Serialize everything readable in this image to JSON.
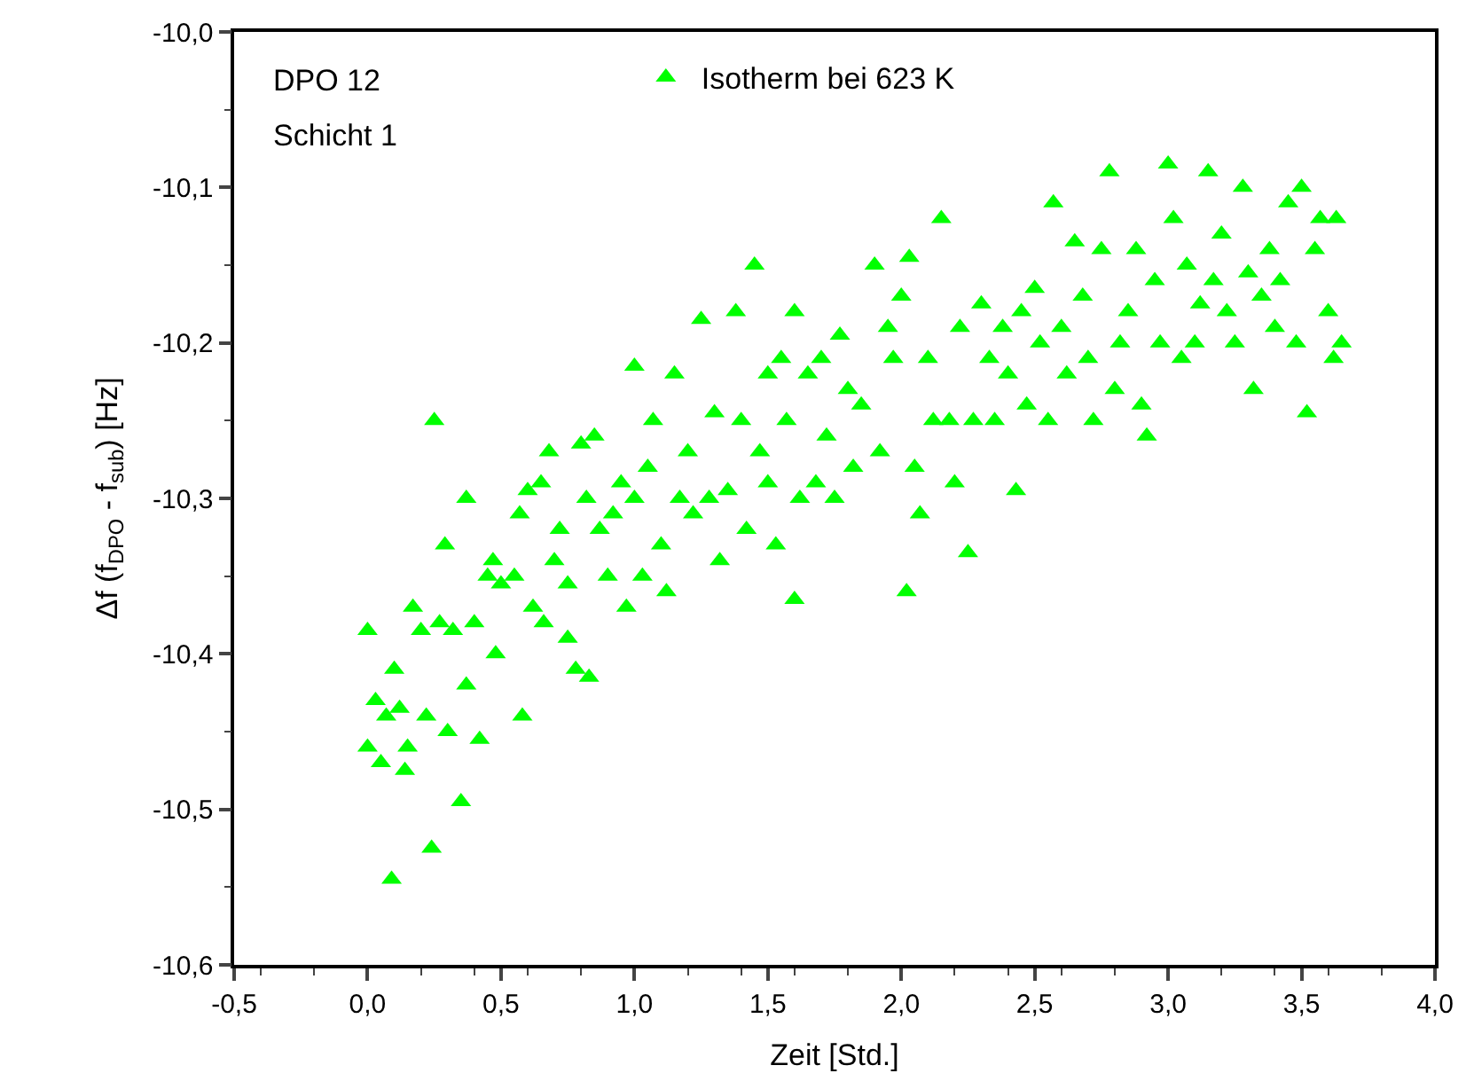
{
  "chart_data": {
    "type": "scatter",
    "xlabel": "Zeit [Std.]",
    "ylabel": "Δf (f$_{DPO}$ - f$_{sub}$) [Hz]",
    "annotations": [
      "DPO 12",
      "Schicht 1"
    ],
    "xlim": [
      -0.5,
      4.0
    ],
    "ylim": [
      -10.6,
      -10.0
    ],
    "xticks": [
      {
        "value": -0.5,
        "label": "-0,5"
      },
      {
        "value": 0,
        "label": "0,0"
      },
      {
        "value": 0.5,
        "label": "0,5"
      },
      {
        "value": 1,
        "label": "1,0"
      },
      {
        "value": 1.5,
        "label": "1,5"
      },
      {
        "value": 2,
        "label": "2,0"
      },
      {
        "value": 2.5,
        "label": "2,5"
      },
      {
        "value": 3,
        "label": "3,0"
      },
      {
        "value": 3.5,
        "label": "3,5"
      },
      {
        "value": 4,
        "label": "4,0"
      }
    ],
    "yticks": [
      {
        "value": -10.6,
        "label": "-10,6"
      },
      {
        "value": -10.5,
        "label": "-10,5"
      },
      {
        "value": -10.4,
        "label": "-10,4"
      },
      {
        "value": -10.3,
        "label": "-10,3"
      },
      {
        "value": -10.2,
        "label": "-10,2"
      },
      {
        "value": -10.1,
        "label": "-10,1"
      },
      {
        "value": -10.0,
        "label": "-10,0"
      }
    ],
    "legend": "top",
    "marker": "triangle",
    "x": [
      0.0,
      0.0,
      0.03,
      0.05,
      0.07,
      0.1,
      0.09,
      0.12,
      0.14,
      0.15,
      0.17,
      0.2,
      0.22,
      0.24,
      0.25,
      0.27,
      0.29,
      0.3,
      0.32,
      0.35,
      0.37,
      0.37,
      0.4,
      0.42,
      0.45,
      0.47,
      0.48,
      0.5,
      0.55,
      0.58,
      0.57,
      0.6,
      0.62,
      0.65,
      0.66,
      0.68,
      0.7,
      0.72,
      0.75,
      0.75,
      0.78,
      0.8,
      0.82,
      0.83,
      0.85,
      0.87,
      0.9,
      0.92,
      0.95,
      0.97,
      1.0,
      1.0,
      1.03,
      1.05,
      1.07,
      1.1,
      1.12,
      1.15,
      1.17,
      1.2,
      1.22,
      1.25,
      1.28,
      1.3,
      1.32,
      1.35,
      1.38,
      1.4,
      1.42,
      1.45,
      1.47,
      1.5,
      1.5,
      1.53,
      1.55,
      1.57,
      1.6,
      1.6,
      1.62,
      1.65,
      1.68,
      1.7,
      1.72,
      1.75,
      1.77,
      1.8,
      1.82,
      1.85,
      1.9,
      1.92,
      1.95,
      1.97,
      2.0,
      2.02,
      2.03,
      2.05,
      2.07,
      2.1,
      2.12,
      2.15,
      2.18,
      2.2,
      2.22,
      2.25,
      2.27,
      2.3,
      2.33,
      2.35,
      2.38,
      2.4,
      2.43,
      2.45,
      2.47,
      2.5,
      2.52,
      2.55,
      2.57,
      2.6,
      2.62,
      2.65,
      2.68,
      2.7,
      2.72,
      2.75,
      2.78,
      2.8,
      2.82,
      2.85,
      2.88,
      2.9,
      2.92,
      2.95,
      2.97,
      3.0,
      3.02,
      3.05,
      3.07,
      3.1,
      3.12,
      3.15,
      3.17,
      3.2,
      3.22,
      3.25,
      3.28,
      3.3,
      3.32,
      3.35,
      3.38,
      3.4,
      3.42,
      3.45,
      3.48,
      3.5,
      3.52,
      3.55,
      3.57,
      3.6,
      3.63,
      3.65,
      3.62
    ],
    "series": [
      {
        "name": "Isotherm bei 623 K",
        "color": "#00ff00",
        "values": [
          -10.385,
          -10.46,
          -10.43,
          -10.47,
          -10.44,
          -10.41,
          -10.545,
          -10.435,
          -10.475,
          -10.46,
          -10.37,
          -10.385,
          -10.44,
          -10.525,
          -10.25,
          -10.38,
          -10.33,
          -10.45,
          -10.385,
          -10.495,
          -10.3,
          -10.42,
          -10.38,
          -10.455,
          -10.35,
          -10.34,
          -10.4,
          -10.355,
          -10.35,
          -10.44,
          -10.31,
          -10.295,
          -10.37,
          -10.29,
          -10.38,
          -10.27,
          -10.34,
          -10.32,
          -10.355,
          -10.39,
          -10.41,
          -10.265,
          -10.3,
          -10.415,
          -10.26,
          -10.32,
          -10.35,
          -10.31,
          -10.29,
          -10.37,
          -10.3,
          -10.215,
          -10.35,
          -10.28,
          -10.25,
          -10.33,
          -10.36,
          -10.22,
          -10.3,
          -10.27,
          -10.31,
          -10.185,
          -10.3,
          -10.245,
          -10.34,
          -10.295,
          -10.18,
          -10.25,
          -10.32,
          -10.15,
          -10.27,
          -10.22,
          -10.29,
          -10.33,
          -10.21,
          -10.25,
          -10.365,
          -10.18,
          -10.3,
          -10.22,
          -10.29,
          -10.21,
          -10.26,
          -10.3,
          -10.195,
          -10.23,
          -10.28,
          -10.24,
          -10.15,
          -10.27,
          -10.19,
          -10.21,
          -10.17,
          -10.36,
          -10.145,
          -10.28,
          -10.31,
          -10.21,
          -10.25,
          -10.12,
          -10.25,
          -10.29,
          -10.19,
          -10.335,
          -10.25,
          -10.175,
          -10.21,
          -10.25,
          -10.19,
          -10.22,
          -10.295,
          -10.18,
          -10.24,
          -10.165,
          -10.2,
          -10.25,
          -10.11,
          -10.19,
          -10.22,
          -10.135,
          -10.17,
          -10.21,
          -10.25,
          -10.14,
          -10.09,
          -10.23,
          -10.2,
          -10.18,
          -10.14,
          -10.24,
          -10.26,
          -10.16,
          -10.2,
          -10.085,
          -10.12,
          -10.21,
          -10.15,
          -10.2,
          -10.175,
          -10.09,
          -10.16,
          -10.13,
          -10.18,
          -10.2,
          -10.1,
          -10.155,
          -10.23,
          -10.17,
          -10.14,
          -10.19,
          -10.16,
          -10.11,
          -10.2,
          -10.1,
          -10.245,
          -10.14,
          -10.12,
          -10.18,
          -10.12,
          -10.2,
          -10.21
        ]
      }
    ]
  }
}
